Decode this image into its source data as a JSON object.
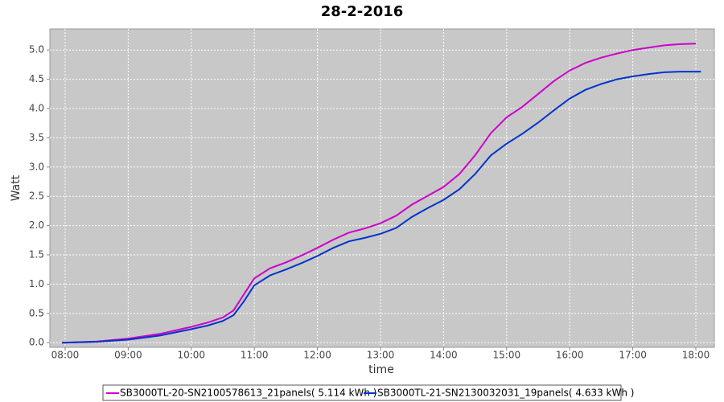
{
  "chart_data": {
    "type": "line",
    "title": "28-2-2016",
    "x_label": "time",
    "y_label": "Watt",
    "x": [
      7.95,
      8.5,
      9.0,
      9.5,
      10.0,
      10.25,
      10.5,
      10.67,
      10.83,
      11.0,
      11.25,
      11.5,
      11.75,
      12.0,
      12.25,
      12.5,
      12.75,
      13.0,
      13.25,
      13.5,
      13.75,
      14.0,
      14.25,
      14.5,
      14.75,
      15.0,
      15.25,
      15.5,
      15.75,
      16.0,
      16.25,
      16.5,
      16.75,
      17.0,
      17.25,
      17.5,
      17.75,
      18.0,
      18.08
    ],
    "series": [
      {
        "name": "SB3000TL-20-SN2100578613_21panels( 5.114 kWh )",
        "color": "#cc00cc",
        "values": [
          0,
          0.02,
          0.07,
          0.15,
          0.27,
          0.34,
          0.43,
          0.55,
          0.82,
          1.1,
          1.27,
          1.37,
          1.49,
          1.62,
          1.76,
          1.88,
          1.95,
          2.04,
          2.17,
          2.36,
          2.51,
          2.66,
          2.88,
          3.2,
          3.58,
          3.85,
          4.03,
          4.25,
          4.47,
          4.65,
          4.78,
          4.87,
          4.94,
          5.0,
          5.04,
          5.08,
          5.1,
          5.11,
          null
        ]
      },
      {
        "name": "SB3000TL-21-SN2130032031_19panels( 4.633 kWh )",
        "color": "#0033cc",
        "values": [
          0,
          0.015,
          0.05,
          0.12,
          0.23,
          0.29,
          0.37,
          0.47,
          0.7,
          0.98,
          1.15,
          1.25,
          1.36,
          1.48,
          1.62,
          1.73,
          1.79,
          1.86,
          1.96,
          2.15,
          2.3,
          2.44,
          2.62,
          2.88,
          3.2,
          3.4,
          3.57,
          3.76,
          3.97,
          4.17,
          4.32,
          4.42,
          4.5,
          4.55,
          4.59,
          4.62,
          4.63,
          4.63,
          4.63
        ]
      }
    ],
    "xlim": [
      7.758,
      18.293
    ],
    "xticks": [
      {
        "value": 8,
        "label": "08:00"
      },
      {
        "value": 9,
        "label": "09:00"
      },
      {
        "value": 10,
        "label": "10:00"
      },
      {
        "value": 11,
        "label": "11:00"
      },
      {
        "value": 12,
        "label": "12:00"
      },
      {
        "value": 13,
        "label": "13:00"
      },
      {
        "value": 14,
        "label": "14:00"
      },
      {
        "value": 15,
        "label": "15:00"
      },
      {
        "value": 16,
        "label": "16:00"
      },
      {
        "value": 17,
        "label": "17:00"
      },
      {
        "value": 18,
        "label": "18:00"
      }
    ],
    "ylim": [
      -0.08,
      5.36
    ],
    "yticks": [
      {
        "value": 0,
        "label": "0.0"
      },
      0.5,
      {
        "value": 1,
        "label": "1.0"
      },
      1.5,
      {
        "value": 2,
        "label": "2.0"
      },
      2.5,
      {
        "value": 3,
        "label": "3.0"
      },
      3.5,
      {
        "value": 4,
        "label": "4.0"
      },
      4.5,
      {
        "value": 5,
        "label": "5.0"
      }
    ],
    "grid": true,
    "legend": "bottom"
  }
}
